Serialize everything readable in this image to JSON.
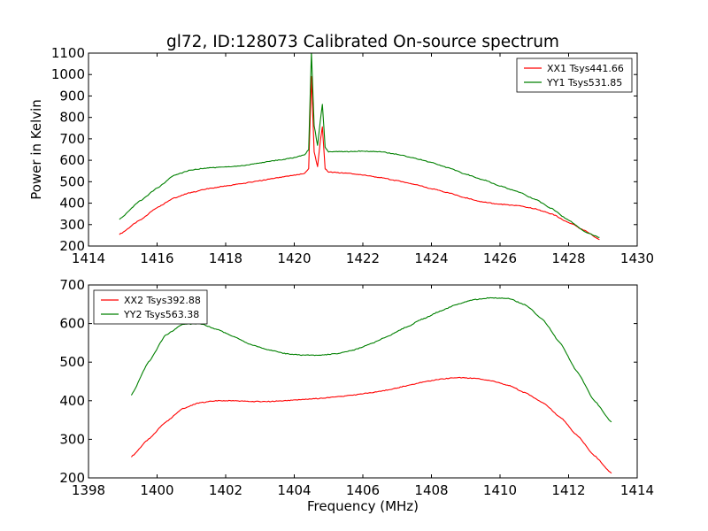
{
  "figure_title": "gl72, ID:128073 Calibrated On-source spectrum",
  "colors": {
    "xx": "#ff0000",
    "yy": "#008000"
  },
  "chart_data": [
    {
      "type": "line",
      "title": "gl72, ID:128073 Calibrated On-source spectrum",
      "xlabel": "",
      "ylabel": "Power in Kelvin",
      "xlim": [
        1414,
        1430
      ],
      "ylim": [
        200,
        1100
      ],
      "xticks": [
        1414,
        1416,
        1418,
        1420,
        1422,
        1424,
        1426,
        1428,
        1430
      ],
      "yticks": [
        200,
        300,
        400,
        500,
        600,
        700,
        800,
        900,
        1000,
        1100
      ],
      "grid": false,
      "legend_position": "top-right",
      "series": [
        {
          "name": "XX1 Tsys441.66",
          "color": "#ff0000",
          "x": [
            1414.9,
            1415.5,
            1416.0,
            1416.5,
            1417.0,
            1417.5,
            1418.0,
            1418.5,
            1419.0,
            1419.5,
            1420.0,
            1420.3,
            1420.42,
            1420.5,
            1420.58,
            1420.68,
            1420.76,
            1420.82,
            1420.9,
            1421.0,
            1421.5,
            1422.0,
            1422.5,
            1423.0,
            1423.5,
            1424.0,
            1424.5,
            1425.0,
            1425.5,
            1426.0,
            1426.5,
            1427.0,
            1427.5,
            1428.0,
            1428.5,
            1428.9
          ],
          "y": [
            255,
            320,
            380,
            425,
            450,
            468,
            480,
            492,
            505,
            518,
            530,
            538,
            560,
            990,
            640,
            570,
            690,
            755,
            560,
            545,
            540,
            532,
            520,
            505,
            488,
            468,
            448,
            425,
            405,
            395,
            388,
            375,
            350,
            310,
            270,
            230
          ]
        },
        {
          "name": "YY1 Tsys531.85",
          "color": "#008000",
          "x": [
            1414.9,
            1415.5,
            1416.0,
            1416.5,
            1417.0,
            1417.5,
            1418.0,
            1418.5,
            1419.0,
            1419.5,
            1420.0,
            1420.3,
            1420.42,
            1420.5,
            1420.58,
            1420.68,
            1420.76,
            1420.82,
            1420.9,
            1421.0,
            1421.5,
            1422.0,
            1422.5,
            1423.0,
            1423.5,
            1424.0,
            1424.5,
            1425.0,
            1425.5,
            1426.0,
            1426.5,
            1427.0,
            1427.5,
            1428.0,
            1428.5,
            1428.9
          ],
          "y": [
            325,
            410,
            470,
            530,
            555,
            565,
            568,
            575,
            588,
            600,
            612,
            625,
            650,
            1105,
            760,
            670,
            785,
            862,
            660,
            640,
            640,
            643,
            640,
            628,
            610,
            590,
            565,
            535,
            510,
            480,
            455,
            420,
            375,
            320,
            265,
            240
          ]
        }
      ]
    },
    {
      "type": "line",
      "title": "",
      "xlabel": "Frequency (MHz)",
      "ylabel": "",
      "xlim": [
        1398,
        1414
      ],
      "ylim": [
        200,
        700
      ],
      "xticks": [
        1398,
        1400,
        1402,
        1404,
        1406,
        1408,
        1410,
        1412,
        1414
      ],
      "yticks": [
        200,
        300,
        400,
        500,
        600,
        700
      ],
      "grid": false,
      "legend_position": "top-left",
      "series": [
        {
          "name": "XX2 Tsys392.88",
          "color": "#ff0000",
          "x": [
            1399.25,
            1399.75,
            1400.25,
            1400.75,
            1401.25,
            1401.75,
            1402.25,
            1402.75,
            1403.25,
            1403.75,
            1404.25,
            1404.75,
            1405.25,
            1405.75,
            1406.25,
            1406.75,
            1407.25,
            1407.75,
            1408.25,
            1408.75,
            1409.25,
            1409.75,
            1410.25,
            1410.75,
            1411.25,
            1411.75,
            1412.25,
            1412.75,
            1413.25
          ],
          "y": [
            255,
            300,
            345,
            380,
            395,
            400,
            400,
            398,
            398,
            400,
            403,
            406,
            410,
            415,
            421,
            428,
            438,
            448,
            456,
            460,
            458,
            452,
            440,
            420,
            395,
            358,
            310,
            258,
            212
          ]
        },
        {
          "name": "YY2 Tsys563.38",
          "color": "#008000",
          "x": [
            1399.25,
            1399.75,
            1400.25,
            1400.75,
            1401.25,
            1401.75,
            1402.25,
            1402.75,
            1403.25,
            1403.75,
            1404.25,
            1404.75,
            1405.25,
            1405.75,
            1406.25,
            1406.75,
            1407.25,
            1407.75,
            1408.25,
            1408.75,
            1409.25,
            1409.75,
            1410.25,
            1410.75,
            1411.25,
            1411.75,
            1412.25,
            1412.75,
            1413.25
          ],
          "y": [
            415,
            500,
            570,
            598,
            600,
            585,
            565,
            545,
            532,
            522,
            518,
            518,
            522,
            532,
            548,
            568,
            590,
            612,
            632,
            650,
            662,
            667,
            665,
            648,
            610,
            550,
            475,
            400,
            345
          ]
        }
      ]
    }
  ]
}
